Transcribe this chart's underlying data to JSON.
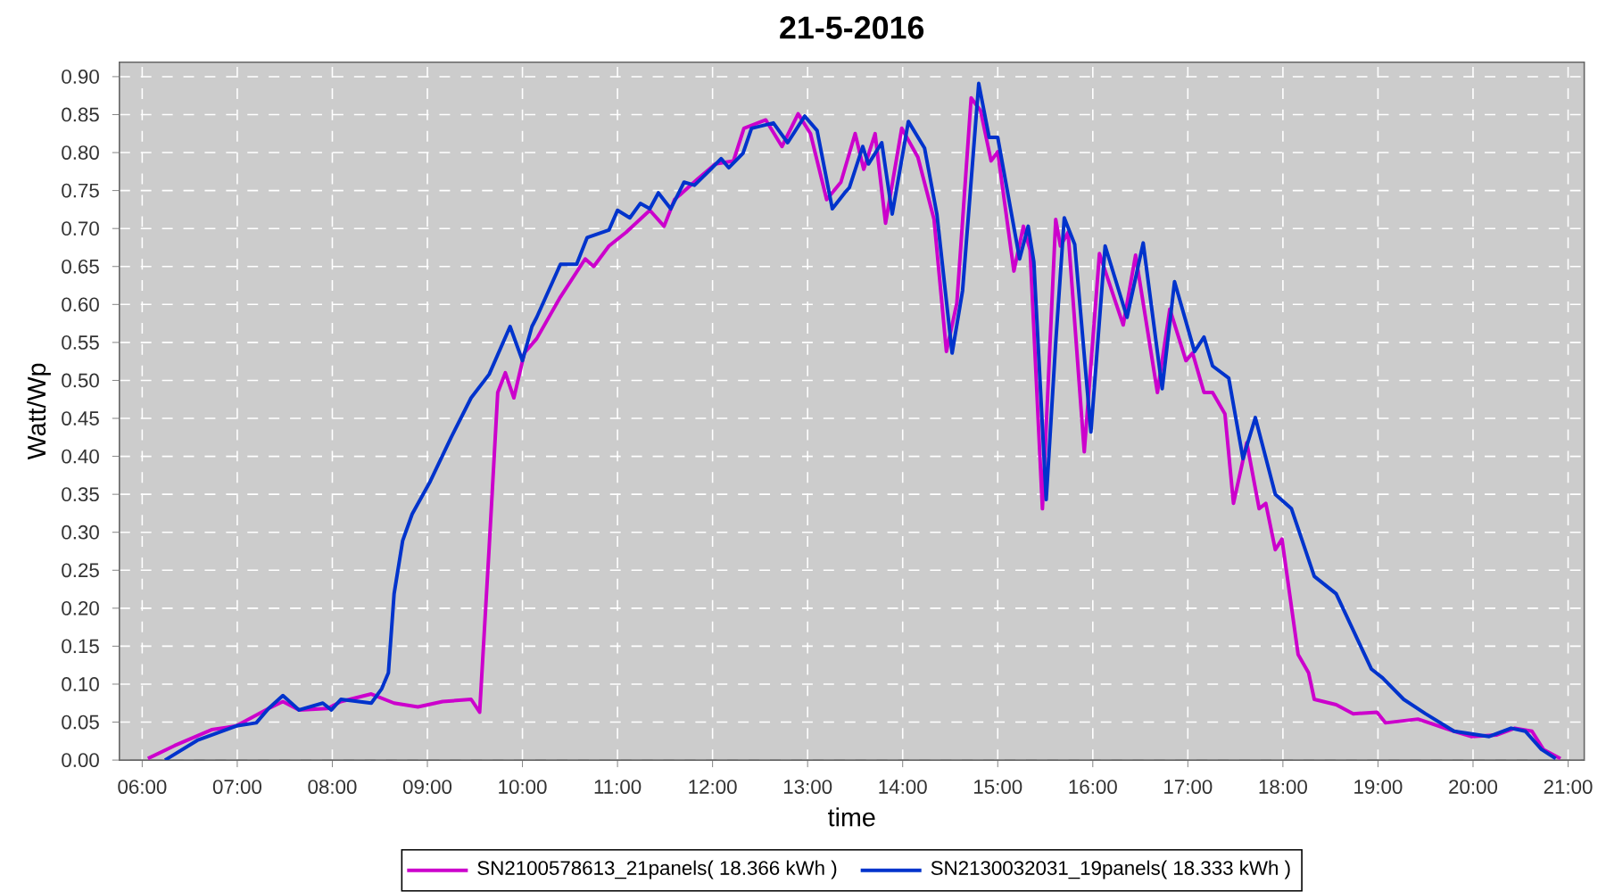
{
  "chart_data": {
    "type": "line",
    "title": "21-5-2016",
    "xlabel": "time",
    "ylabel": "Watt/Wp",
    "xlim": [
      5.76,
      21.17
    ],
    "ylim": [
      0,
      0.919
    ],
    "xticks": [
      {
        "value": 6,
        "label": "06:00"
      },
      {
        "value": 7,
        "label": "07:00"
      },
      {
        "value": 8,
        "label": "08:00"
      },
      {
        "value": 9,
        "label": "09:00"
      },
      {
        "value": 10,
        "label": "10:00"
      },
      {
        "value": 11,
        "label": "11:00"
      },
      {
        "value": 12,
        "label": "12:00"
      },
      {
        "value": 13,
        "label": "13:00"
      },
      {
        "value": 14,
        "label": "14:00"
      },
      {
        "value": 15,
        "label": "15:00"
      },
      {
        "value": 16,
        "label": "16:00"
      },
      {
        "value": 17,
        "label": "17:00"
      },
      {
        "value": 18,
        "label": "18:00"
      },
      {
        "value": 19,
        "label": "19:00"
      },
      {
        "value": 20,
        "label": "20:00"
      },
      {
        "value": 21,
        "label": "21:00"
      }
    ],
    "yticks": [
      {
        "value": 0,
        "label": "0.00"
      },
      {
        "value": 0.05,
        "label": "0.05"
      },
      {
        "value": 0.1,
        "label": "0.10"
      },
      {
        "value": 0.15,
        "label": "0.15"
      },
      {
        "value": 0.2,
        "label": "0.20"
      },
      {
        "value": 0.25,
        "label": "0.25"
      },
      {
        "value": 0.3,
        "label": "0.30"
      },
      {
        "value": 0.35,
        "label": "0.35"
      },
      {
        "value": 0.4,
        "label": "0.40"
      },
      {
        "value": 0.45,
        "label": "0.45"
      },
      {
        "value": 0.5,
        "label": "0.50"
      },
      {
        "value": 0.55,
        "label": "0.55"
      },
      {
        "value": 0.6,
        "label": "0.60"
      },
      {
        "value": 0.65,
        "label": "0.65"
      },
      {
        "value": 0.7,
        "label": "0.70"
      },
      {
        "value": 0.75,
        "label": "0.75"
      },
      {
        "value": 0.8,
        "label": "0.80"
      },
      {
        "value": 0.85,
        "label": "0.85"
      },
      {
        "value": 0.9,
        "label": "0.90"
      }
    ],
    "grid": true,
    "legend": "bottom",
    "line_style": "solid",
    "series": [
      {
        "name": "SN2100578613_21panels( 18.366 kWh )",
        "color": "#cc00cc",
        "x": [
          6.06,
          6.34,
          6.73,
          6.99,
          7.33,
          7.48,
          7.65,
          7.95,
          8.09,
          8.41,
          8.65,
          8.9,
          9.16,
          9.46,
          9.55,
          9.65,
          9.74,
          9.82,
          9.91,
          10.02,
          10.15,
          10.4,
          10.66,
          10.75,
          10.91,
          11.09,
          11.34,
          11.49,
          11.6,
          11.85,
          12.03,
          12.22,
          12.33,
          12.56,
          12.73,
          12.9,
          13.03,
          13.2,
          13.35,
          13.5,
          13.59,
          13.71,
          13.82,
          13.99,
          14.16,
          14.33,
          14.46,
          14.57,
          14.72,
          14.82,
          14.93,
          15.0,
          15.17,
          15.27,
          15.34,
          15.47,
          15.61,
          15.66,
          15.74,
          15.91,
          16.07,
          16.32,
          16.45,
          16.68,
          16.81,
          16.98,
          17.05,
          17.17,
          17.26,
          17.39,
          17.48,
          17.62,
          17.75,
          17.82,
          17.92,
          17.99,
          18.16,
          18.27,
          18.33,
          18.56,
          18.74,
          18.99,
          19.08,
          19.42,
          19.8,
          19.98,
          20.25,
          20.44,
          20.62,
          20.74,
          20.92
        ],
        "values": [
          0.002,
          0.019,
          0.04,
          0.045,
          0.068,
          0.077,
          0.066,
          0.068,
          0.077,
          0.087,
          0.075,
          0.07,
          0.077,
          0.08,
          0.063,
          0.28,
          0.484,
          0.51,
          0.477,
          0.536,
          0.555,
          0.61,
          0.66,
          0.65,
          0.677,
          0.695,
          0.724,
          0.703,
          0.738,
          0.766,
          0.785,
          0.789,
          0.832,
          0.843,
          0.808,
          0.851,
          0.825,
          0.738,
          0.761,
          0.825,
          0.778,
          0.825,
          0.707,
          0.832,
          0.794,
          0.712,
          0.538,
          0.602,
          0.872,
          0.855,
          0.789,
          0.801,
          0.644,
          0.703,
          0.672,
          0.331,
          0.712,
          0.677,
          0.695,
          0.406,
          0.667,
          0.573,
          0.665,
          0.484,
          0.594,
          0.526,
          0.536,
          0.484,
          0.484,
          0.456,
          0.338,
          0.418,
          0.331,
          0.338,
          0.277,
          0.291,
          0.139,
          0.115,
          0.08,
          0.073,
          0.061,
          0.063,
          0.049,
          0.054,
          0.038,
          0.031,
          0.033,
          0.042,
          0.038,
          0.014,
          0.002
        ]
      },
      {
        "name": "SN2130032031_19panels( 18.333 kWh )",
        "color": "#0033cc",
        "x": [
          6.24,
          6.58,
          6.99,
          7.2,
          7.33,
          7.48,
          7.65,
          7.9,
          7.99,
          8.09,
          8.41,
          8.52,
          8.59,
          8.65,
          8.74,
          8.84,
          9.03,
          9.25,
          9.46,
          9.65,
          9.87,
          10.0,
          10.1,
          10.15,
          10.4,
          10.57,
          10.68,
          10.91,
          11.0,
          11.13,
          11.24,
          11.34,
          11.43,
          11.56,
          11.7,
          11.81,
          11.98,
          12.09,
          12.17,
          12.32,
          12.41,
          12.64,
          12.79,
          12.97,
          13.1,
          13.26,
          13.39,
          13.44,
          13.58,
          13.64,
          13.78,
          13.89,
          14.06,
          14.23,
          14.36,
          14.52,
          14.63,
          14.8,
          14.91,
          15.0,
          15.23,
          15.32,
          15.38,
          15.51,
          15.61,
          15.7,
          15.81,
          15.98,
          16.13,
          16.36,
          16.53,
          16.73,
          16.86,
          17.07,
          17.17,
          17.26,
          17.43,
          17.58,
          17.71,
          17.92,
          18.09,
          18.33,
          18.56,
          18.93,
          19.05,
          19.27,
          19.5,
          19.8,
          20.17,
          20.4,
          20.55,
          20.72,
          20.87
        ],
        "values": [
          0.0,
          0.026,
          0.045,
          0.049,
          0.068,
          0.085,
          0.066,
          0.075,
          0.066,
          0.08,
          0.075,
          0.094,
          0.115,
          0.219,
          0.289,
          0.324,
          0.367,
          0.425,
          0.477,
          0.508,
          0.571,
          0.526,
          0.571,
          0.583,
          0.653,
          0.653,
          0.688,
          0.698,
          0.724,
          0.714,
          0.733,
          0.726,
          0.747,
          0.726,
          0.761,
          0.757,
          0.778,
          0.792,
          0.78,
          0.799,
          0.832,
          0.839,
          0.813,
          0.848,
          0.829,
          0.726,
          0.747,
          0.754,
          0.808,
          0.785,
          0.813,
          0.719,
          0.841,
          0.806,
          0.719,
          0.536,
          0.618,
          0.891,
          0.82,
          0.82,
          0.66,
          0.703,
          0.656,
          0.343,
          0.55,
          0.714,
          0.679,
          0.432,
          0.677,
          0.583,
          0.681,
          0.489,
          0.63,
          0.538,
          0.557,
          0.519,
          0.503,
          0.397,
          0.451,
          0.35,
          0.331,
          0.242,
          0.219,
          0.12,
          0.108,
          0.08,
          0.061,
          0.038,
          0.031,
          0.042,
          0.038,
          0.014,
          0.002
        ]
      }
    ]
  }
}
